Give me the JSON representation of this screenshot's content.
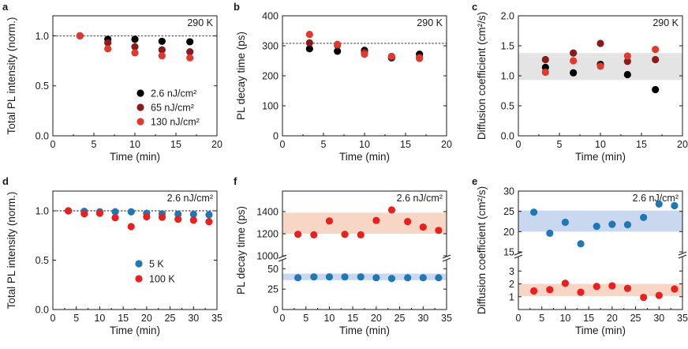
{
  "chart_data": [
    {
      "type": "scatter",
      "label": "a",
      "annotation": "290 K",
      "xlabel": "Time (min)",
      "ylabel": "Total PL intensity (norm.)",
      "xlim": [
        0,
        20
      ],
      "ylim": [
        0,
        1.2
      ],
      "xticks": [
        "0",
        "5",
        "10",
        "15",
        "20"
      ],
      "yticks": [
        "0.0",
        "0.5",
        "1.0"
      ],
      "reference_line": 1.0,
      "series": [
        {
          "name": "2.6 nJ/cm²",
          "color": "#000000",
          "x": [
            3.3,
            6.7,
            10,
            13.3,
            16.7
          ],
          "y": [
            1.0,
            0.965,
            0.965,
            0.945,
            0.94
          ]
        },
        {
          "name": "65 nJ/cm²",
          "color": "#8b1a1a",
          "x": [
            3.3,
            6.7,
            10,
            13.3,
            16.7
          ],
          "y": [
            1.0,
            0.93,
            0.89,
            0.86,
            0.84
          ]
        },
        {
          "name": "130 nJ/cm²",
          "color": "#e03a2e",
          "x": [
            3.3,
            6.7,
            10,
            13.3,
            16.7
          ],
          "y": [
            1.0,
            0.87,
            0.83,
            0.8,
            0.78
          ]
        }
      ]
    },
    {
      "type": "scatter",
      "label": "b",
      "annotation": "290 K",
      "xlabel": "Time (min)",
      "ylabel": "PL decay time (ps)",
      "xlim": [
        0,
        20
      ],
      "ylim": [
        0,
        400
      ],
      "xticks": [
        "0",
        "5",
        "10",
        "15",
        "20"
      ],
      "yticks": [
        "0",
        "100",
        "200",
        "300",
        "400"
      ],
      "reference_line": 308,
      "series": [
        {
          "name": "2.6 nJ/cm²",
          "color": "#000000",
          "x": [
            3.3,
            6.7,
            10,
            13.3,
            16.7
          ],
          "y": [
            290,
            282,
            285,
            260,
            272
          ]
        },
        {
          "name": "65 nJ/cm²",
          "color": "#8b1a1a",
          "x": [
            3.3,
            6.7,
            10,
            13.3,
            16.7
          ],
          "y": [
            310,
            302,
            278,
            263,
            262
          ]
        },
        {
          "name": "130 nJ/cm²",
          "color": "#e03a2e",
          "x": [
            3.3,
            6.7,
            10,
            13.3,
            16.7
          ],
          "y": [
            338,
            305,
            272,
            265,
            258
          ]
        }
      ]
    },
    {
      "type": "scatter",
      "label": "c",
      "annotation": "290 K",
      "xlabel": "Time (min)",
      "ylabel": "Diffusion coefficient (cm²/s)",
      "xlim": [
        0,
        20
      ],
      "ylim": [
        0,
        2.0
      ],
      "xticks": [
        "0",
        "5",
        "10",
        "15",
        "20"
      ],
      "yticks": [
        "0.0",
        "0.5",
        "1.0",
        "1.5",
        "2.0"
      ],
      "band": {
        "range": [
          0.93,
          1.38
        ],
        "color": "#e4e4e4"
      },
      "series": [
        {
          "name": "2.6 nJ/cm²",
          "color": "#000000",
          "x": [
            3.3,
            6.7,
            10,
            13.3,
            16.7
          ],
          "y": [
            1.14,
            1.05,
            1.19,
            1.02,
            0.77
          ]
        },
        {
          "name": "65 nJ/cm²",
          "color": "#8b1a1a",
          "x": [
            3.3,
            6.7,
            10,
            13.3,
            16.7
          ],
          "y": [
            1.27,
            1.38,
            1.54,
            1.24,
            1.27
          ]
        },
        {
          "name": "130 nJ/cm²",
          "color": "#e03a2e",
          "x": [
            3.3,
            6.7,
            10,
            13.3,
            16.7
          ],
          "y": [
            1.06,
            1.25,
            1.16,
            1.33,
            1.44
          ]
        }
      ]
    },
    {
      "type": "scatter",
      "label": "d",
      "annotation": "2.6 nJ/cm²",
      "xlabel": "Time (min)",
      "ylabel": "Total PL intensity (norm.)",
      "xlim": [
        0,
        35
      ],
      "ylim": [
        0,
        1.2
      ],
      "xticks": [
        "0",
        "5",
        "10",
        "15",
        "20",
        "25",
        "30",
        "35"
      ],
      "yticks": [
        "0.0",
        "0.5",
        "1.0"
      ],
      "reference_line": 1.0,
      "series": [
        {
          "name": "5 K",
          "color": "#1f77b4",
          "x": [
            3.3,
            6.7,
            10,
            13.3,
            16.7,
            20,
            23.3,
            26.7,
            30,
            33.3
          ],
          "y": [
            1.0,
            0.995,
            0.99,
            0.99,
            0.99,
            0.975,
            0.97,
            0.965,
            0.965,
            0.96
          ]
        },
        {
          "name": "100 K",
          "color": "#e82020",
          "x": [
            3.3,
            6.7,
            10,
            13.3,
            16.7,
            20,
            23.3,
            26.7,
            30,
            33.3
          ],
          "y": [
            1.0,
            0.97,
            0.975,
            0.93,
            0.84,
            0.94,
            0.935,
            0.915,
            0.905,
            0.89
          ]
        }
      ]
    },
    {
      "type": "scatter",
      "label": "f",
      "annotation": "2.6 nJ/cm²",
      "xlabel": "Time (min)",
      "ylabel": "PL decay time (ps)",
      "xlim": [
        0,
        35
      ],
      "xticks": [
        "0",
        "5",
        "10",
        "15",
        "20",
        "25",
        "30",
        "35"
      ],
      "axis_break": true,
      "upper_ylim": [
        1000,
        1500
      ],
      "upper_yticks": [
        "1000",
        "1200",
        "1400"
      ],
      "lower_ylim": [
        0,
        60
      ],
      "lower_yticks": [
        "0",
        "25",
        "50"
      ],
      "bands": [
        {
          "range": [
            1200,
            1390
          ],
          "color": "#f7d6c6"
        },
        {
          "range": [
            36,
            44
          ],
          "color": "#c9d8ef"
        }
      ],
      "series": [
        {
          "name": "5 K",
          "color": "#1f77b4",
          "x": [
            3.3,
            6.7,
            10,
            13.3,
            16.7,
            20,
            23.3,
            26.7,
            30,
            33.3
          ],
          "y": [
            39,
            40,
            40,
            40,
            40,
            39,
            38,
            39,
            39,
            39
          ]
        },
        {
          "name": "100 K",
          "color": "#e82020",
          "x": [
            3.3,
            6.7,
            10,
            13.3,
            16.7,
            20,
            23.3,
            26.7,
            30,
            33.3
          ],
          "y": [
            1195,
            1190,
            1315,
            1195,
            1190,
            1320,
            1415,
            1310,
            1260,
            1230
          ]
        }
      ]
    },
    {
      "type": "scatter",
      "label": "e",
      "annotation": "2.6 nJ/cm²",
      "xlabel": "Time (min)",
      "ylabel": "Diffusion coefficient (cm²/s)",
      "xlim": [
        0,
        35
      ],
      "xticks": [
        "0",
        "5",
        "10",
        "15",
        "20",
        "25",
        "30",
        "35"
      ],
      "axis_break": true,
      "upper_ylim": [
        15,
        30
      ],
      "upper_yticks": [
        "15",
        "20",
        "25",
        "30"
      ],
      "lower_ylim": [
        0,
        4
      ],
      "lower_yticks": [
        "1",
        "2",
        "3"
      ],
      "bands": [
        {
          "range": [
            20,
            25.2
          ],
          "color": "#c9d8ef"
        },
        {
          "range": [
            1.05,
            2.0
          ],
          "color": "#f7d6c6"
        }
      ],
      "series": [
        {
          "name": "5 K",
          "color": "#1f77b4",
          "x": [
            3.3,
            6.7,
            10,
            13.3,
            16.7,
            20,
            23.3,
            26.7,
            30,
            33.3
          ],
          "y": [
            24.8,
            19.6,
            22.3,
            17.0,
            21.3,
            21.8,
            21.7,
            23.5,
            26.8,
            26.4
          ]
        },
        {
          "name": "100 K",
          "color": "#e82020",
          "x": [
            3.3,
            6.7,
            10,
            13.3,
            16.7,
            20,
            23.3,
            26.7,
            30,
            33.3
          ],
          "y": [
            1.45,
            1.55,
            2.05,
            1.35,
            1.8,
            1.85,
            1.65,
            0.95,
            1.1,
            1.6
          ]
        }
      ]
    }
  ]
}
